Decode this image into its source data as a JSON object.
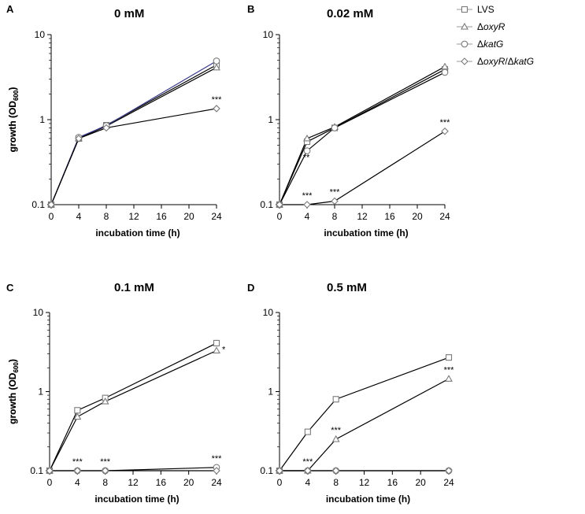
{
  "figure": {
    "legend": [
      {
        "name": "LVS",
        "prefix": "",
        "italic": "",
        "suffix": "",
        "marker": "square"
      },
      {
        "name": "ΔoxyR",
        "prefix": "Δ",
        "italic": "oxyR",
        "suffix": "",
        "marker": "triangle"
      },
      {
        "name": "ΔkatG",
        "prefix": "Δ",
        "italic": "katG",
        "suffix": "",
        "marker": "circle"
      },
      {
        "name": "ΔoxyR/ΔkatG",
        "prefix": "Δ",
        "italic": "oxyR",
        "suffix": "/Δ",
        "italic2": "katG",
        "marker": "diamond"
      }
    ],
    "ylabel_main": "growth (OD",
    "ylabel_sub": "600",
    "ylabel_close": ")",
    "xlabel": "incubation time (h)",
    "xticks": [
      0,
      4,
      8,
      12,
      16,
      20,
      24
    ],
    "yticks": [
      0.1,
      1,
      10
    ],
    "ytick_labels": [
      "0.1",
      "1",
      "10"
    ]
  },
  "chart_data": [
    {
      "panel": "A",
      "title": "0 mM",
      "type": "line",
      "x": [
        0,
        4,
        8,
        24
      ],
      "xlim": [
        0,
        24
      ],
      "ylim": [
        0.1,
        10
      ],
      "yscale": "log",
      "series": [
        {
          "name": "LVS",
          "values": [
            0.1,
            0.6,
            0.86,
            4.4
          ]
        },
        {
          "name": "ΔoxyR",
          "values": [
            0.1,
            0.6,
            0.84,
            4.1
          ]
        },
        {
          "name": "ΔkatG",
          "values": [
            0.1,
            0.62,
            0.85,
            4.9
          ]
        },
        {
          "name": "ΔoxyR/ΔkatG",
          "values": [
            0.1,
            0.6,
            0.8,
            1.35
          ]
        }
      ],
      "annotations": [
        {
          "text": "***",
          "x": 24,
          "y": 1.35
        }
      ]
    },
    {
      "panel": "B",
      "title": "0.02 mM",
      "type": "line",
      "x": [
        0,
        4,
        8,
        24
      ],
      "xlim": [
        0,
        24
      ],
      "ylim": [
        0.1,
        10
      ],
      "yscale": "log",
      "series": [
        {
          "name": "LVS",
          "values": [
            0.1,
            0.55,
            0.8,
            3.9
          ]
        },
        {
          "name": "ΔoxyR",
          "values": [
            0.1,
            0.6,
            0.82,
            4.2
          ]
        },
        {
          "name": "ΔkatG",
          "values": [
            0.1,
            0.43,
            0.8,
            3.6
          ]
        },
        {
          "name": "ΔoxyR/ΔkatG",
          "values": [
            0.1,
            0.1,
            0.11,
            0.73
          ]
        }
      ],
      "annotations": [
        {
          "text": "**",
          "x": 4,
          "y": 0.43
        },
        {
          "text": "***",
          "x": 4,
          "y": 0.1
        },
        {
          "text": "***",
          "x": 8,
          "y": 0.11
        },
        {
          "text": "***",
          "x": 24,
          "y": 0.73
        }
      ]
    },
    {
      "panel": "C",
      "title": "0.1 mM",
      "type": "line",
      "x": [
        0,
        4,
        8,
        24
      ],
      "xlim": [
        0,
        24
      ],
      "ylim": [
        0.1,
        10
      ],
      "yscale": "log",
      "series": [
        {
          "name": "LVS",
          "values": [
            0.1,
            0.58,
            0.83,
            4.1
          ]
        },
        {
          "name": "ΔoxyR",
          "values": [
            0.1,
            0.48,
            0.75,
            3.3
          ]
        },
        {
          "name": "ΔkatG",
          "values": [
            0.1,
            0.1,
            0.1,
            0.11
          ]
        },
        {
          "name": "ΔoxyR/ΔkatG",
          "values": [
            0.1,
            0.1,
            0.1,
            0.1
          ]
        }
      ],
      "annotations": [
        {
          "text": "*",
          "x": 24,
          "y": 3.3
        },
        {
          "text": "***",
          "x": 4,
          "y": 0.1
        },
        {
          "text": "***",
          "x": 8,
          "y": 0.1
        },
        {
          "text": "***",
          "x": 24,
          "y": 0.11
        }
      ]
    },
    {
      "panel": "D",
      "title": "0.5 mM",
      "type": "line",
      "x": [
        0,
        4,
        8,
        24
      ],
      "xlim": [
        0,
        24
      ],
      "ylim": [
        0.1,
        10
      ],
      "yscale": "log",
      "series": [
        {
          "name": "LVS",
          "values": [
            0.1,
            0.31,
            0.8,
            2.7
          ]
        },
        {
          "name": "ΔoxyR",
          "values": [
            0.1,
            0.1,
            0.25,
            1.45
          ]
        },
        {
          "name": "ΔkatG",
          "values": [
            0.1,
            0.1,
            0.1,
            0.1
          ]
        },
        {
          "name": "ΔoxyR/ΔkatG",
          "values": [
            0.1,
            0.1,
            0.1,
            0.1
          ]
        }
      ],
      "annotations": [
        {
          "text": "***",
          "x": 4,
          "y": 0.1
        },
        {
          "text": "***",
          "x": 8,
          "y": 0.25
        },
        {
          "text": "***",
          "x": 24,
          "y": 1.45
        }
      ]
    }
  ]
}
